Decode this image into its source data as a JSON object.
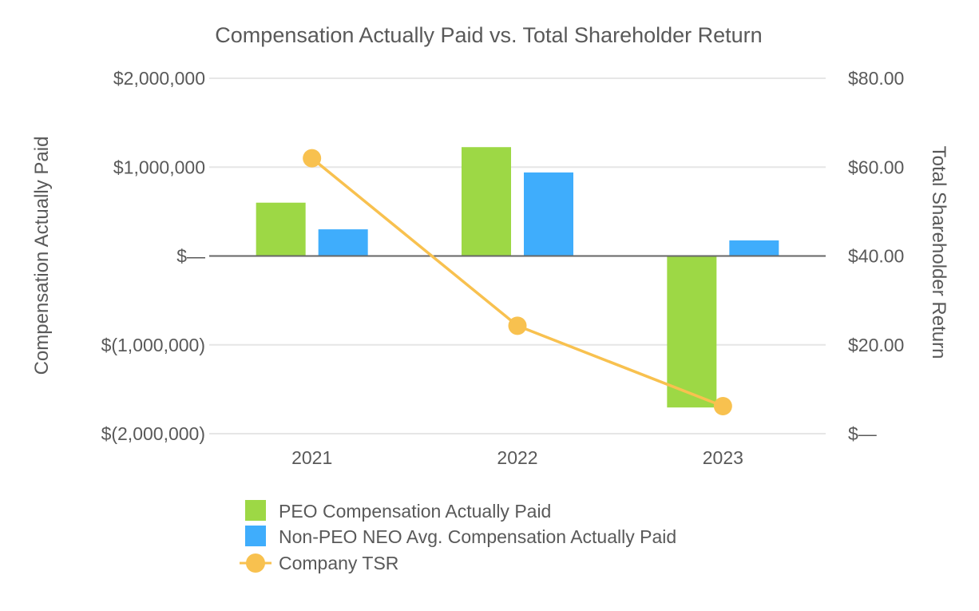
{
  "chart_data": {
    "type": "bar",
    "title": "Compensation Actually Paid vs. Total Shareholder Return",
    "categories": [
      "2021",
      "2022",
      "2023"
    ],
    "ylabel": "Compensation Actually Paid",
    "y2label": "Total Shareholder Return",
    "ylim": [
      -2000000,
      2000000
    ],
    "y2lim": [
      0,
      80
    ],
    "yticks": [
      {
        "value": 2000000,
        "label": "$2,000,000"
      },
      {
        "value": 1000000,
        "label": "$1,000,000"
      },
      {
        "value": 0,
        "label": "$—"
      },
      {
        "value": -1000000,
        "label": "$(1,000,000)"
      },
      {
        "value": -2000000,
        "label": "$(2,000,000)"
      }
    ],
    "y2ticks": [
      {
        "value": 80,
        "label": "$80.00"
      },
      {
        "value": 60,
        "label": "$60.00"
      },
      {
        "value": 40,
        "label": "$40.00"
      },
      {
        "value": 20,
        "label": "$20.00"
      },
      {
        "value": 0,
        "label": "$—"
      }
    ],
    "grid": true,
    "legend_position": "bottom",
    "series": [
      {
        "name": "PEO Compensation Actually Paid",
        "type": "bar",
        "axis": "left",
        "color": "#9dd845",
        "values": [
          600000,
          1225000,
          -1705000
        ]
      },
      {
        "name": "Non-PEO NEO Avg. Compensation Actually Paid",
        "type": "bar",
        "axis": "left",
        "color": "#3fadfc",
        "values": [
          300000,
          940000,
          175000
        ]
      },
      {
        "name": "Company TSR",
        "type": "line",
        "axis": "right",
        "color": "#f8c14f",
        "values": [
          62.0,
          24.3,
          6.2
        ]
      }
    ]
  }
}
